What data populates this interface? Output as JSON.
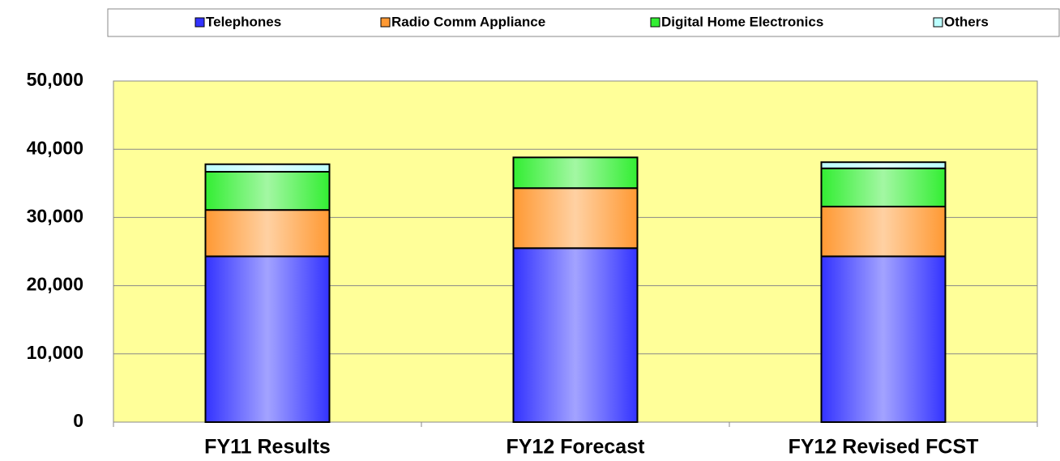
{
  "chart_data": {
    "type": "stacked_bar",
    "categories": [
      "FY11 Results",
      "FY12 Forecast",
      "FY12 Revised FCST"
    ],
    "series": [
      {
        "name": "Telephones",
        "color": "#3333ff",
        "values": [
          24300,
          25500,
          24300
        ]
      },
      {
        "name": "Radio Comm Appliance",
        "color": "#ff9933",
        "values": [
          6800,
          8800,
          7300
        ]
      },
      {
        "name": "Digital Home Electronics",
        "color": "#33ee33",
        "values": [
          5600,
          4500,
          5600
        ]
      },
      {
        "name": "Others",
        "color": "#bbffff",
        "values": [
          1100,
          0,
          900
        ]
      }
    ],
    "ylim": [
      0,
      50000
    ],
    "yticks": [
      0,
      {
        "value": 10000,
        "label": "10,000"
      },
      {
        "value": 20000,
        "label": "20,000"
      },
      {
        "value": 30000,
        "label": "30,000"
      },
      {
        "value": 40000,
        "label": "40,000"
      },
      {
        "value": 50000,
        "label": "50,000"
      }
    ],
    "grid": true,
    "legend": "top",
    "plot_background": "#ffff99"
  }
}
